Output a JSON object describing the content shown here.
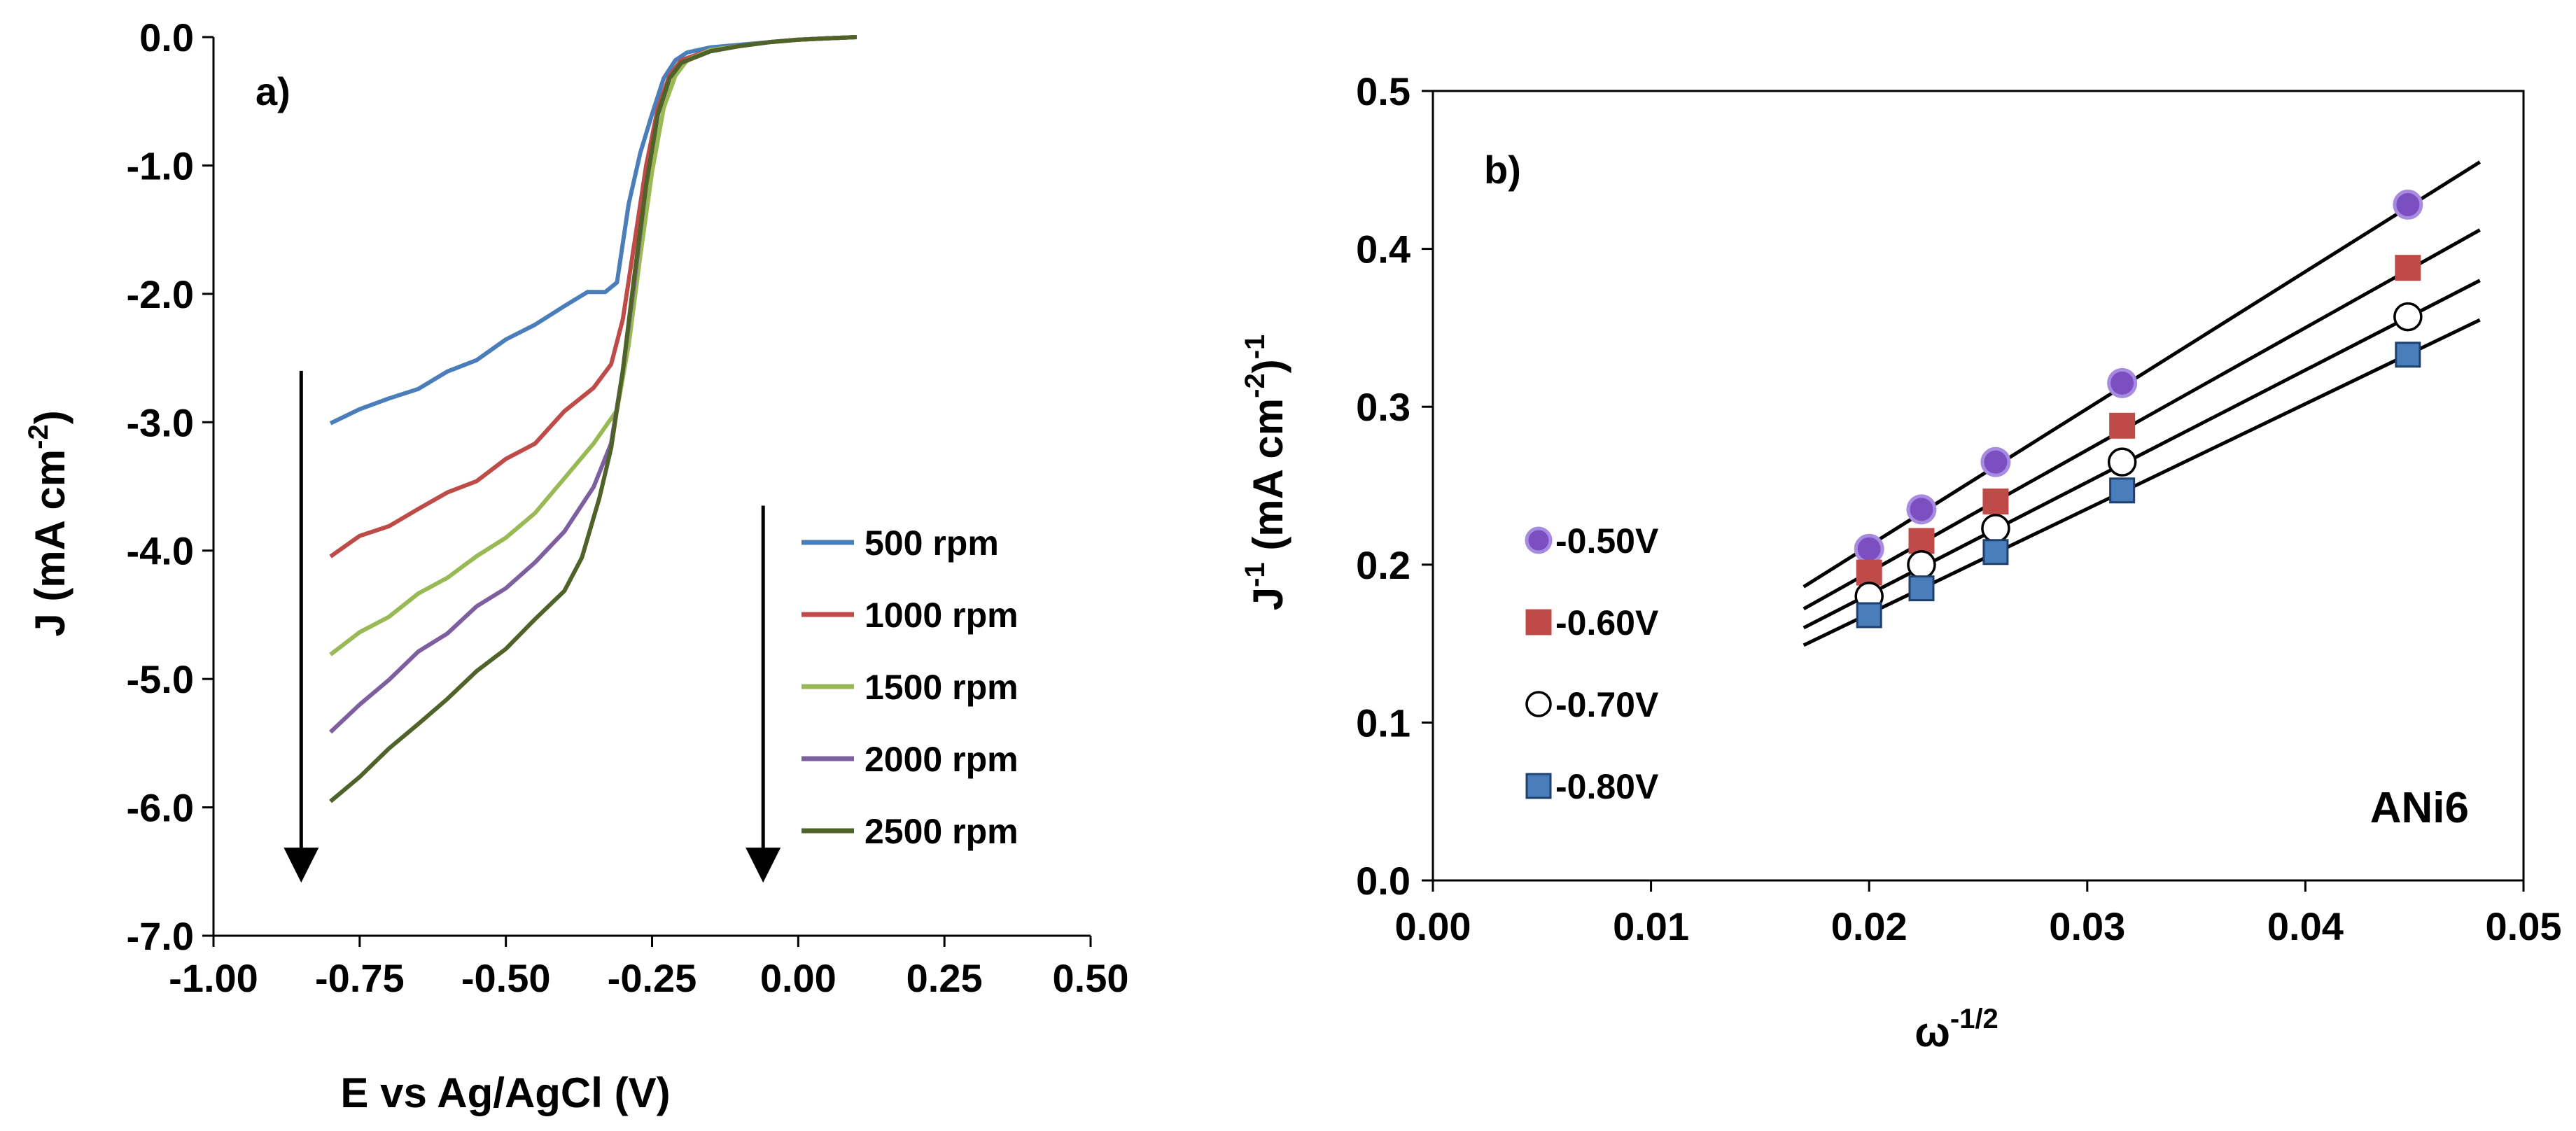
{
  "chart_data": [
    {
      "type": "line",
      "panel_label": "a)",
      "xlabel": "E vs Ag/AgCl (V)",
      "ylabel_parts": [
        "J (mA cm",
        "-2",
        ")"
      ],
      "xlim": [
        -1.0,
        0.5
      ],
      "ylim": [
        -7.0,
        0.0
      ],
      "x_ticks": [
        "-1.00",
        "-0.75",
        "-0.50",
        "-0.25",
        "0.00",
        "0.25",
        "0.50"
      ],
      "x_tick_values": [
        -1.0,
        -0.75,
        -0.5,
        -0.25,
        0.0,
        0.25,
        0.5
      ],
      "y_ticks": [
        "0.0",
        "-1.0",
        "-2.0",
        "-3.0",
        "-4.0",
        "-5.0",
        "-6.0",
        "-7.0"
      ],
      "y_tick_values": [
        0,
        -1,
        -2,
        -3,
        -4,
        -5,
        -6,
        -7
      ],
      "grid": false,
      "legend_position": "right",
      "series": [
        {
          "name": "500 rpm",
          "color": "#4A7EBB",
          "points": [
            [
              -0.8,
              -3.0
            ],
            [
              -0.75,
              -2.9
            ],
            [
              -0.7,
              -2.82
            ],
            [
              -0.65,
              -2.73
            ],
            [
              -0.6,
              -2.62
            ],
            [
              -0.55,
              -2.5
            ],
            [
              -0.5,
              -2.37
            ],
            [
              -0.45,
              -2.23
            ],
            [
              -0.4,
              -2.1
            ],
            [
              -0.36,
              -2.0
            ],
            [
              -0.33,
              -1.99
            ],
            [
              -0.31,
              -1.9
            ],
            [
              -0.29,
              -1.3
            ],
            [
              -0.27,
              -0.9
            ],
            [
              -0.25,
              -0.6
            ],
            [
              -0.23,
              -0.32
            ],
            [
              -0.21,
              -0.18
            ],
            [
              -0.19,
              -0.12
            ],
            [
              -0.15,
              -0.08
            ],
            [
              -0.1,
              -0.06
            ],
            [
              -0.05,
              -0.04
            ],
            [
              0.0,
              -0.02
            ],
            [
              0.05,
              -0.01
            ],
            [
              0.1,
              0.0
            ]
          ]
        },
        {
          "name": "1000 rpm",
          "color": "#BE4B48",
          "points": [
            [
              -0.8,
              -4.03
            ],
            [
              -0.75,
              -3.9
            ],
            [
              -0.7,
              -3.8
            ],
            [
              -0.65,
              -3.68
            ],
            [
              -0.6,
              -3.55
            ],
            [
              -0.55,
              -3.45
            ],
            [
              -0.5,
              -3.3
            ],
            [
              -0.45,
              -3.15
            ],
            [
              -0.4,
              -2.93
            ],
            [
              -0.35,
              -2.72
            ],
            [
              -0.32,
              -2.55
            ],
            [
              -0.3,
              -2.2
            ],
            [
              -0.28,
              -1.6
            ],
            [
              -0.26,
              -1.0
            ],
            [
              -0.24,
              -0.55
            ],
            [
              -0.22,
              -0.3
            ],
            [
              -0.2,
              -0.18
            ],
            [
              -0.15,
              -0.1
            ],
            [
              -0.1,
              -0.07
            ],
            [
              -0.05,
              -0.04
            ],
            [
              0.0,
              -0.02
            ],
            [
              0.05,
              -0.01
            ],
            [
              0.1,
              0.0
            ]
          ]
        },
        {
          "name": "1500 rpm",
          "color": "#98B954",
          "points": [
            [
              -0.8,
              -4.8
            ],
            [
              -0.75,
              -4.65
            ],
            [
              -0.7,
              -4.5
            ],
            [
              -0.65,
              -4.35
            ],
            [
              -0.6,
              -4.2
            ],
            [
              -0.55,
              -4.05
            ],
            [
              -0.5,
              -3.9
            ],
            [
              -0.45,
              -3.7
            ],
            [
              -0.4,
              -3.45
            ],
            [
              -0.35,
              -3.15
            ],
            [
              -0.31,
              -2.9
            ],
            [
              -0.29,
              -2.4
            ],
            [
              -0.27,
              -1.7
            ],
            [
              -0.25,
              -1.05
            ],
            [
              -0.23,
              -0.55
            ],
            [
              -0.21,
              -0.3
            ],
            [
              -0.19,
              -0.18
            ],
            [
              -0.15,
              -0.1
            ],
            [
              -0.1,
              -0.07
            ],
            [
              -0.05,
              -0.04
            ],
            [
              0.0,
              -0.02
            ],
            [
              0.05,
              -0.01
            ],
            [
              0.1,
              0.0
            ]
          ]
        },
        {
          "name": "2000 rpm",
          "color": "#7D5FA0",
          "points": [
            [
              -0.8,
              -5.42
            ],
            [
              -0.75,
              -5.2
            ],
            [
              -0.7,
              -5.0
            ],
            [
              -0.65,
              -4.8
            ],
            [
              -0.6,
              -4.63
            ],
            [
              -0.55,
              -4.45
            ],
            [
              -0.5,
              -4.28
            ],
            [
              -0.45,
              -4.1
            ],
            [
              -0.4,
              -3.85
            ],
            [
              -0.35,
              -3.5
            ],
            [
              -0.32,
              -3.15
            ],
            [
              -0.3,
              -2.6
            ],
            [
              -0.28,
              -1.9
            ],
            [
              -0.26,
              -1.15
            ],
            [
              -0.24,
              -0.6
            ],
            [
              -0.22,
              -0.32
            ],
            [
              -0.2,
              -0.2
            ],
            [
              -0.15,
              -0.11
            ],
            [
              -0.1,
              -0.07
            ],
            [
              -0.05,
              -0.04
            ],
            [
              0.0,
              -0.02
            ],
            [
              0.05,
              -0.01
            ],
            [
              0.1,
              0.0
            ]
          ]
        },
        {
          "name": "2500 rpm",
          "color": "#4F6228",
          "points": [
            [
              -0.8,
              -5.97
            ],
            [
              -0.75,
              -5.75
            ],
            [
              -0.7,
              -5.55
            ],
            [
              -0.65,
              -5.35
            ],
            [
              -0.6,
              -5.15
            ],
            [
              -0.55,
              -4.95
            ],
            [
              -0.5,
              -4.75
            ],
            [
              -0.45,
              -4.55
            ],
            [
              -0.4,
              -4.3
            ],
            [
              -0.37,
              -4.05
            ],
            [
              -0.34,
              -3.6
            ],
            [
              -0.32,
              -3.2
            ],
            [
              -0.3,
              -2.6
            ],
            [
              -0.28,
              -1.85
            ],
            [
              -0.26,
              -1.15
            ],
            [
              -0.24,
              -0.6
            ],
            [
              -0.22,
              -0.32
            ],
            [
              -0.2,
              -0.2
            ],
            [
              -0.15,
              -0.11
            ],
            [
              -0.1,
              -0.07
            ],
            [
              -0.05,
              -0.04
            ],
            [
              0.0,
              -0.02
            ],
            [
              0.05,
              -0.01
            ],
            [
              0.1,
              0.0
            ]
          ]
        }
      ],
      "arrows": [
        {
          "x": -0.85,
          "y_start": -2.6,
          "y_end": -6.45
        },
        {
          "x": -0.06,
          "y_start": -3.65,
          "y_end": -6.45
        }
      ]
    },
    {
      "type": "scatter",
      "panel_label": "b)",
      "annotation": "ANi6",
      "xlabel_parts": [
        "ω",
        "-1/2"
      ],
      "ylabel_parts": [
        "J",
        "-1",
        " (mA cm",
        "-2",
        ")",
        "-1"
      ],
      "xlim": [
        0.0,
        0.05
      ],
      "ylim": [
        0.0,
        0.5
      ],
      "x_ticks": [
        "0.00",
        "0.01",
        "0.02",
        "0.03",
        "0.04",
        "0.05"
      ],
      "x_tick_values": [
        0.0,
        0.01,
        0.02,
        0.03,
        0.04,
        0.05
      ],
      "y_ticks": [
        "0.0",
        "0.1",
        "0.2",
        "0.3",
        "0.4",
        "0.5"
      ],
      "y_tick_values": [
        0.0,
        0.1,
        0.2,
        0.3,
        0.4,
        0.5
      ],
      "grid": false,
      "legend_position": "left",
      "x": [
        0.02,
        0.0224,
        0.0258,
        0.0316,
        0.0447
      ],
      "series": [
        {
          "name": "-0.50V",
          "marker": "circle",
          "fill": "#7B4FC0",
          "stroke": "#A78BE0",
          "values": [
            0.21,
            0.235,
            0.265,
            0.315,
            0.428
          ],
          "fit_line": [
            [
              0.017,
              0.186
            ],
            [
              0.048,
              0.455
            ]
          ]
        },
        {
          "name": "-0.60V",
          "marker": "square",
          "fill": "#BE4B48",
          "stroke": "#BE4B48",
          "values": [
            0.195,
            0.215,
            0.24,
            0.288,
            0.388
          ],
          "fit_line": [
            [
              0.017,
              0.172
            ],
            [
              0.048,
              0.412
            ]
          ]
        },
        {
          "name": "-0.70V",
          "marker": "open-circle",
          "fill": "#FFFFFF",
          "stroke": "#000000",
          "values": [
            0.18,
            0.2,
            0.223,
            0.265,
            0.357
          ],
          "fit_line": [
            [
              0.017,
              0.16
            ],
            [
              0.048,
              0.38
            ]
          ]
        },
        {
          "name": "-0.80V",
          "marker": "square",
          "fill": "#4A7EBB",
          "stroke": "#1F3F6E",
          "values": [
            0.168,
            0.185,
            0.208,
            0.247,
            0.333
          ],
          "fit_line": [
            [
              0.017,
              0.149
            ],
            [
              0.048,
              0.355
            ]
          ]
        }
      ]
    }
  ]
}
